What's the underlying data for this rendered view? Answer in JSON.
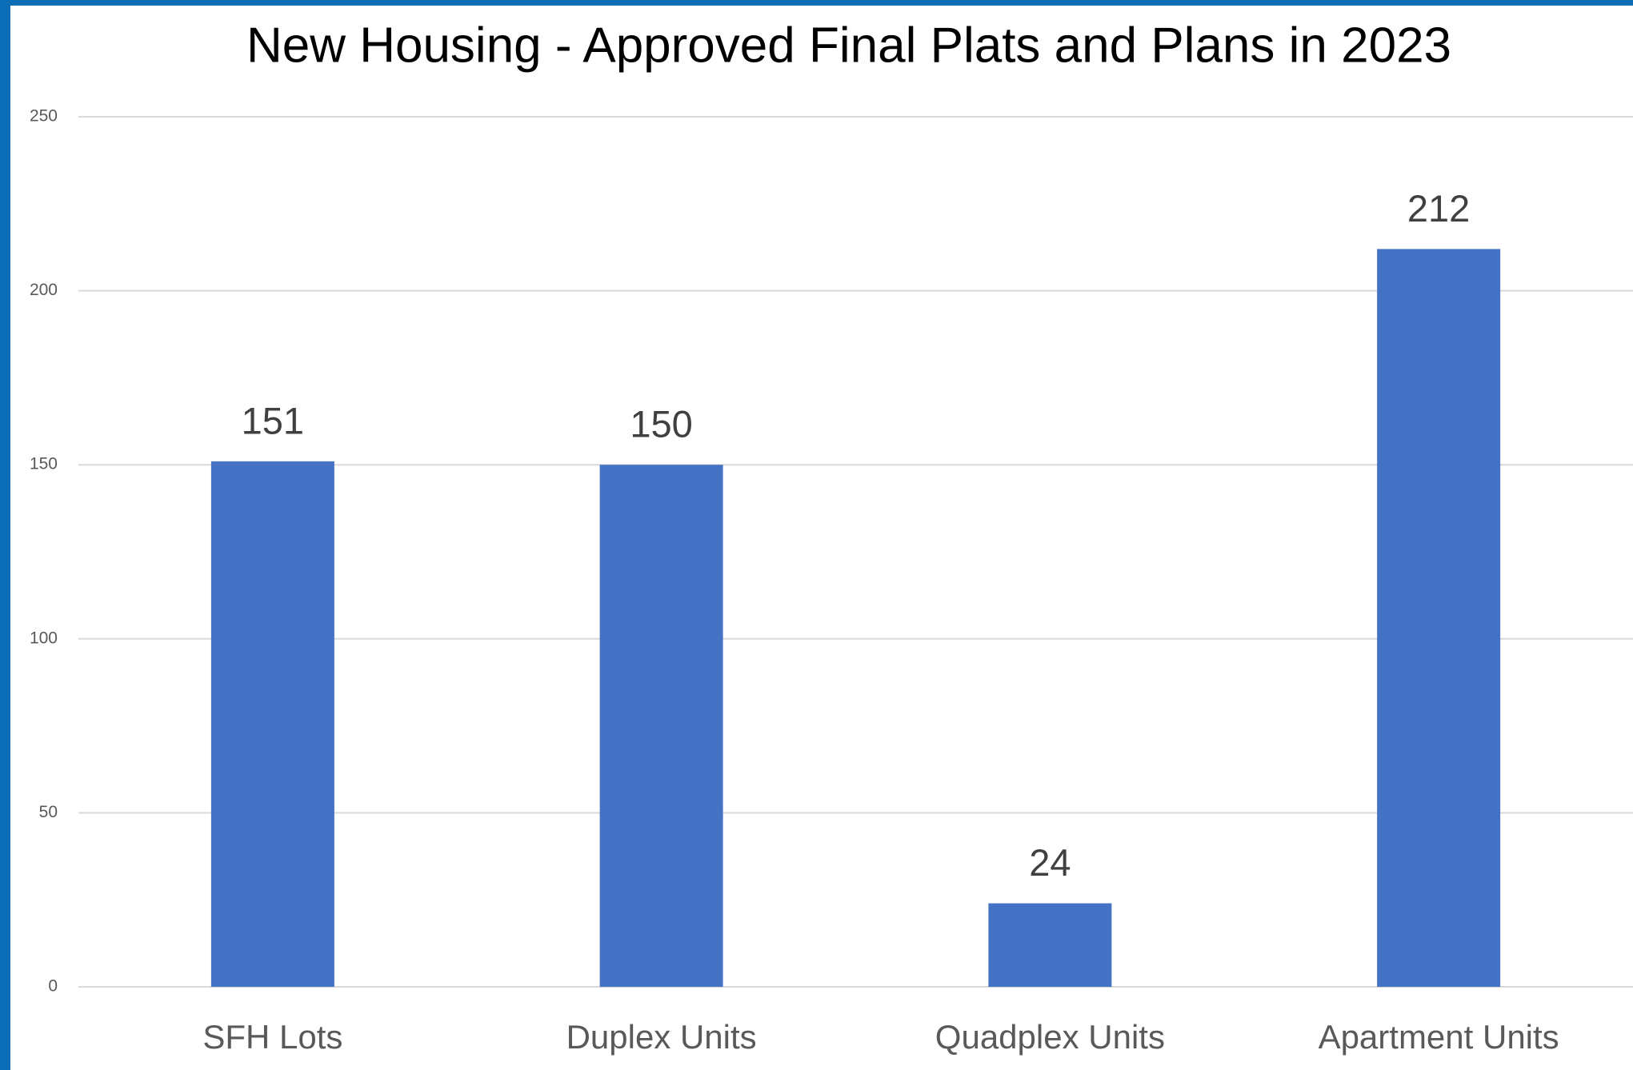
{
  "chart_data": {
    "type": "bar",
    "title": "New Housing - Approved Final Plats and Plans in 2023",
    "categories": [
      "SFH Lots",
      "Duplex Units",
      "Quadplex Units",
      "Apartment Units"
    ],
    "values": [
      151,
      150,
      24,
      212
    ],
    "color": "#4472c4",
    "ylim": [
      0,
      250
    ],
    "yticks": [
      0,
      50,
      100,
      150,
      200,
      250
    ],
    "grid": true
  }
}
